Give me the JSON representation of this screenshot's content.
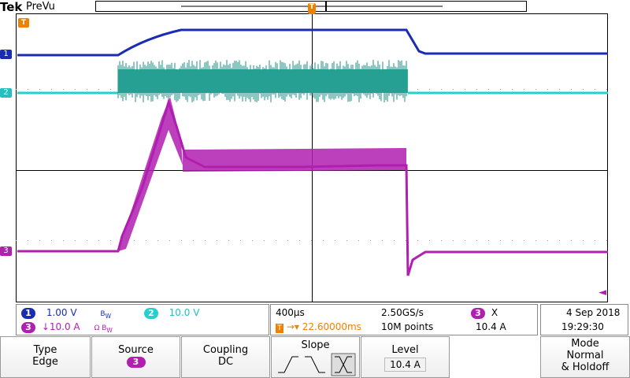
{
  "header": {
    "brand": "Tek",
    "mode": "PreVu"
  },
  "channels": [
    {
      "id": "1",
      "color": "#1a2db2",
      "scale": "1.00 V",
      "bw_icon": "B-W-icon"
    },
    {
      "id": "2",
      "color": "#00d0d0",
      "scale": "10.0 V"
    },
    {
      "id": "3",
      "color": "#b01fb0",
      "scale": "↓10.0 A",
      "bw_icon": "Ω-B-W-icon"
    }
  ],
  "timebase": {
    "scale": "400µs",
    "sample_rate": "2.50GS/s",
    "trigger_delay": "22.60000ms",
    "record_length": "10M points"
  },
  "trigger": {
    "channel": "3",
    "slope_symbol": "X",
    "level": "10.4 A"
  },
  "datetime": {
    "date": "4 Sep 2018",
    "time": "19:29:30"
  },
  "menu": {
    "type_label": "Type",
    "type_value": "Edge",
    "source_label": "Source",
    "source_value": "3",
    "coupling_label": "Coupling",
    "coupling_value": "DC",
    "slope_label": "Slope",
    "level_label": "Level",
    "level_value": "10.4 A",
    "mode_label": "Mode",
    "mode_value": "Normal",
    "mode_value2": "& Holdoff"
  },
  "markers": {
    "trigger_pos": "T",
    "trigger_left": "T",
    "ch1": "1",
    "ch2": "2",
    "ch3": "3"
  },
  "colors": {
    "ch1": "#1a2db2",
    "ch2": "#00c8c8",
    "ch3": "#b01fb0",
    "trigger": "#f08000"
  }
}
